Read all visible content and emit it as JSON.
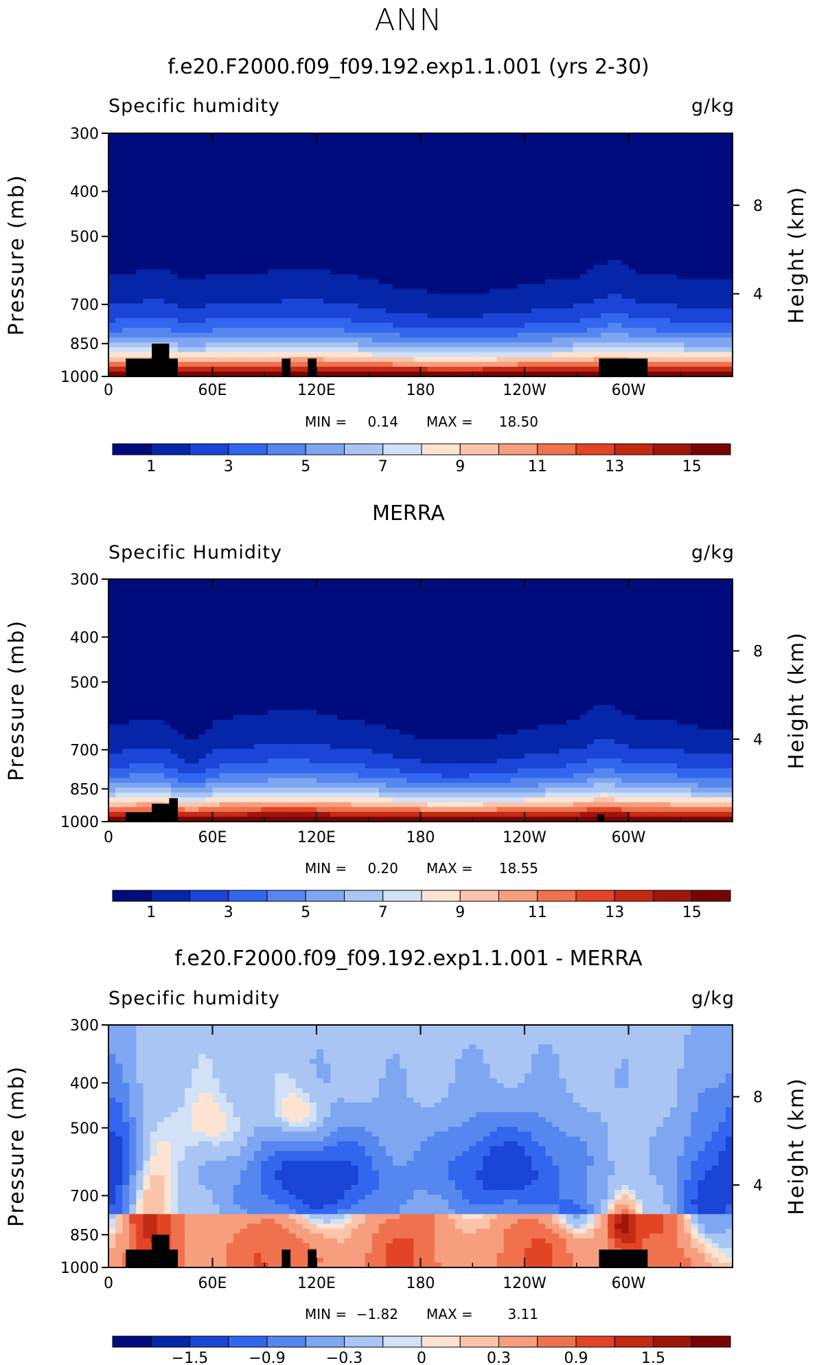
{
  "header": {
    "season": "ANN"
  },
  "chart_data": [
    {
      "type": "heatmap",
      "title": "f.e20.F2000.f09_f09.192.exp1.1.001 (yrs 2-30)",
      "subtitle": "Specific humidity",
      "units": "g/kg",
      "ylabel": "Pressure (mb)",
      "y2label": "Height (km)",
      "xticks": [
        "0",
        "60E",
        "120E",
        "180",
        "120W",
        "60W"
      ],
      "yticks": [
        "300",
        "400",
        "500",
        "700",
        "850",
        "1000"
      ],
      "y2ticks": [
        "8",
        "4"
      ],
      "min_label": "MIN =",
      "min": "0.14",
      "max_label": "MAX =",
      "max": "18.50",
      "colorbar_labels": [
        "1",
        "3",
        "5",
        "7",
        "9",
        "11",
        "13",
        "15"
      ],
      "palette": "moisture",
      "field": "model",
      "ylim": [
        1000,
        300
      ],
      "xlim": [
        0,
        360
      ]
    },
    {
      "type": "heatmap",
      "title": "MERRA",
      "subtitle": "Specific Humidity",
      "units": "g/kg",
      "ylabel": "Pressure (mb)",
      "y2label": "Height (km)",
      "xticks": [
        "0",
        "60E",
        "120E",
        "180",
        "120W",
        "60W"
      ],
      "yticks": [
        "300",
        "400",
        "500",
        "700",
        "850",
        "1000"
      ],
      "y2ticks": [
        "8",
        "4"
      ],
      "min_label": "MIN =",
      "min": "0.20",
      "max_label": "MAX =",
      "max": "18.55",
      "colorbar_labels": [
        "1",
        "3",
        "5",
        "7",
        "9",
        "11",
        "13",
        "15"
      ],
      "palette": "moisture",
      "field": "obs",
      "ylim": [
        1000,
        300
      ],
      "xlim": [
        0,
        360
      ]
    },
    {
      "type": "heatmap",
      "title": "f.e20.F2000.f09_f09.192.exp1.1.001 - MERRA",
      "subtitle": "Specific humidity",
      "units": "g/kg",
      "ylabel": "Pressure (mb)",
      "y2label": "Height (km)",
      "xticks": [
        "0",
        "60E",
        "120E",
        "180",
        "120W",
        "60W"
      ],
      "yticks": [
        "300",
        "400",
        "500",
        "700",
        "850",
        "1000"
      ],
      "y2ticks": [
        "8",
        "4"
      ],
      "min_label": "MIN =",
      "min": "−1.82",
      "max_label": "MAX =",
      "max": "3.11",
      "colorbar_labels": [
        "−1.5",
        "−0.9",
        "−0.3",
        "0",
        "0.3",
        "0.9",
        "1.5"
      ],
      "palette": "difference",
      "field": "diff",
      "ylim": [
        1000,
        300
      ],
      "xlim": [
        0,
        360
      ]
    }
  ]
}
